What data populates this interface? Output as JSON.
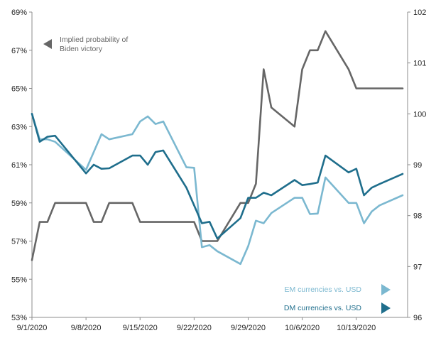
{
  "chart_data": {
    "type": "line",
    "title": "",
    "x_ticks": [
      "9/1/2020",
      "9/8/2020",
      "9/15/2020",
      "9/22/2020",
      "9/29/2020",
      "10/6/2020",
      "10/13/2020"
    ],
    "y_left": {
      "ticks": [
        "53%",
        "55%",
        "57%",
        "59%",
        "61%",
        "63%",
        "65%",
        "67%",
        "69%"
      ],
      "range": [
        53,
        69
      ]
    },
    "y_right": {
      "ticks": [
        "96",
        "97",
        "98",
        "99",
        "100",
        "101",
        "102"
      ],
      "range": [
        96,
        102
      ]
    },
    "grid": false,
    "legend_placement": "inline-annotations",
    "series": [
      {
        "name": "Implied probability of Biden victory",
        "axis": "left",
        "color": "#666666",
        "x": [
          "9/1/2020",
          "9/2/2020",
          "9/3/2020",
          "9/4/2020",
          "9/8/2020",
          "9/9/2020",
          "9/10/2020",
          "9/11/2020",
          "9/14/2020",
          "9/15/2020",
          "9/16/2020",
          "9/17/2020",
          "9/18/2020",
          "9/21/2020",
          "9/22/2020",
          "9/23/2020",
          "9/24/2020",
          "9/25/2020",
          "9/28/2020",
          "9/29/2020",
          "9/30/2020",
          "10/1/2020",
          "10/2/2020",
          "10/5/2020",
          "10/6/2020",
          "10/7/2020",
          "10/8/2020",
          "10/9/2020",
          "10/12/2020",
          "10/13/2020",
          "10/14/2020",
          "10/15/2020",
          "10/16/2020",
          "10/19/2020"
        ],
        "values": [
          56,
          58,
          58,
          59,
          59,
          58,
          58,
          59,
          59,
          58,
          58,
          58,
          58,
          58,
          58,
          57,
          57,
          57,
          59,
          59,
          60,
          66,
          64,
          63,
          66,
          67,
          67,
          68,
          66,
          65,
          65,
          65,
          65,
          65
        ]
      },
      {
        "name": "EM currencies vs. USD",
        "axis": "right",
        "color": "#7bb8d0",
        "x": [
          "9/1/2020",
          "9/2/2020",
          "9/3/2020",
          "9/4/2020",
          "9/8/2020",
          "9/9/2020",
          "9/10/2020",
          "9/11/2020",
          "9/14/2020",
          "9/15/2020",
          "9/16/2020",
          "9/17/2020",
          "9/18/2020",
          "9/21/2020",
          "9/22/2020",
          "9/23/2020",
          "9/24/2020",
          "9/25/2020",
          "9/28/2020",
          "9/29/2020",
          "9/30/2020",
          "10/1/2020",
          "10/2/2020",
          "10/5/2020",
          "10/6/2020",
          "10/7/2020",
          "10/8/2020",
          "10/9/2020",
          "10/12/2020",
          "10/13/2020",
          "10/14/2020",
          "10/15/2020",
          "10/16/2020",
          "10/19/2020"
        ],
        "values": [
          100.0,
          99.5,
          99.5,
          99.45,
          98.9,
          99.25,
          99.6,
          99.5,
          99.6,
          99.85,
          99.95,
          99.8,
          99.85,
          98.95,
          98.94,
          97.38,
          97.42,
          97.3,
          97.05,
          97.4,
          97.9,
          97.85,
          98.05,
          98.35,
          98.35,
          98.03,
          98.04,
          98.75,
          98.25,
          98.25,
          97.85,
          98.08,
          98.2,
          98.4
        ]
      },
      {
        "name": "DM currencies vs. USD",
        "axis": "right",
        "color": "#1f6e8c",
        "x": [
          "9/1/2020",
          "9/2/2020",
          "9/3/2020",
          "9/4/2020",
          "9/8/2020",
          "9/9/2020",
          "9/10/2020",
          "9/11/2020",
          "9/14/2020",
          "9/15/2020",
          "9/16/2020",
          "9/17/2020",
          "9/18/2020",
          "9/21/2020",
          "9/22/2020",
          "9/23/2020",
          "9/24/2020",
          "9/25/2020",
          "9/28/2020",
          "9/29/2020",
          "9/30/2020",
          "10/1/2020",
          "10/2/2020",
          "10/5/2020",
          "10/6/2020",
          "10/7/2020",
          "10/8/2020",
          "10/9/2020",
          "10/12/2020",
          "10/13/2020",
          "10/14/2020",
          "10/15/2020",
          "10/16/2020",
          "10/19/2020"
        ],
        "values": [
          100.0,
          99.45,
          99.55,
          99.57,
          98.83,
          99.0,
          98.92,
          98.93,
          99.18,
          99.18,
          99.0,
          99.25,
          99.28,
          98.55,
          98.2,
          97.85,
          97.88,
          97.55,
          97.95,
          98.35,
          98.35,
          98.45,
          98.4,
          98.7,
          98.6,
          98.62,
          98.65,
          99.18,
          98.85,
          98.92,
          98.4,
          98.55,
          98.62,
          98.82
        ]
      }
    ],
    "annotations": [
      {
        "text": "Implied probability of Biden victory",
        "lines": [
          "Implied probability of",
          "Biden victory"
        ],
        "color": "#666666",
        "arrow": "left"
      },
      {
        "text": "EM currencies vs. USD",
        "color": "#7bb8d0",
        "arrow": "right"
      },
      {
        "text": "DM currencies vs. USD",
        "color": "#1f6e8c",
        "arrow": "right"
      }
    ]
  }
}
